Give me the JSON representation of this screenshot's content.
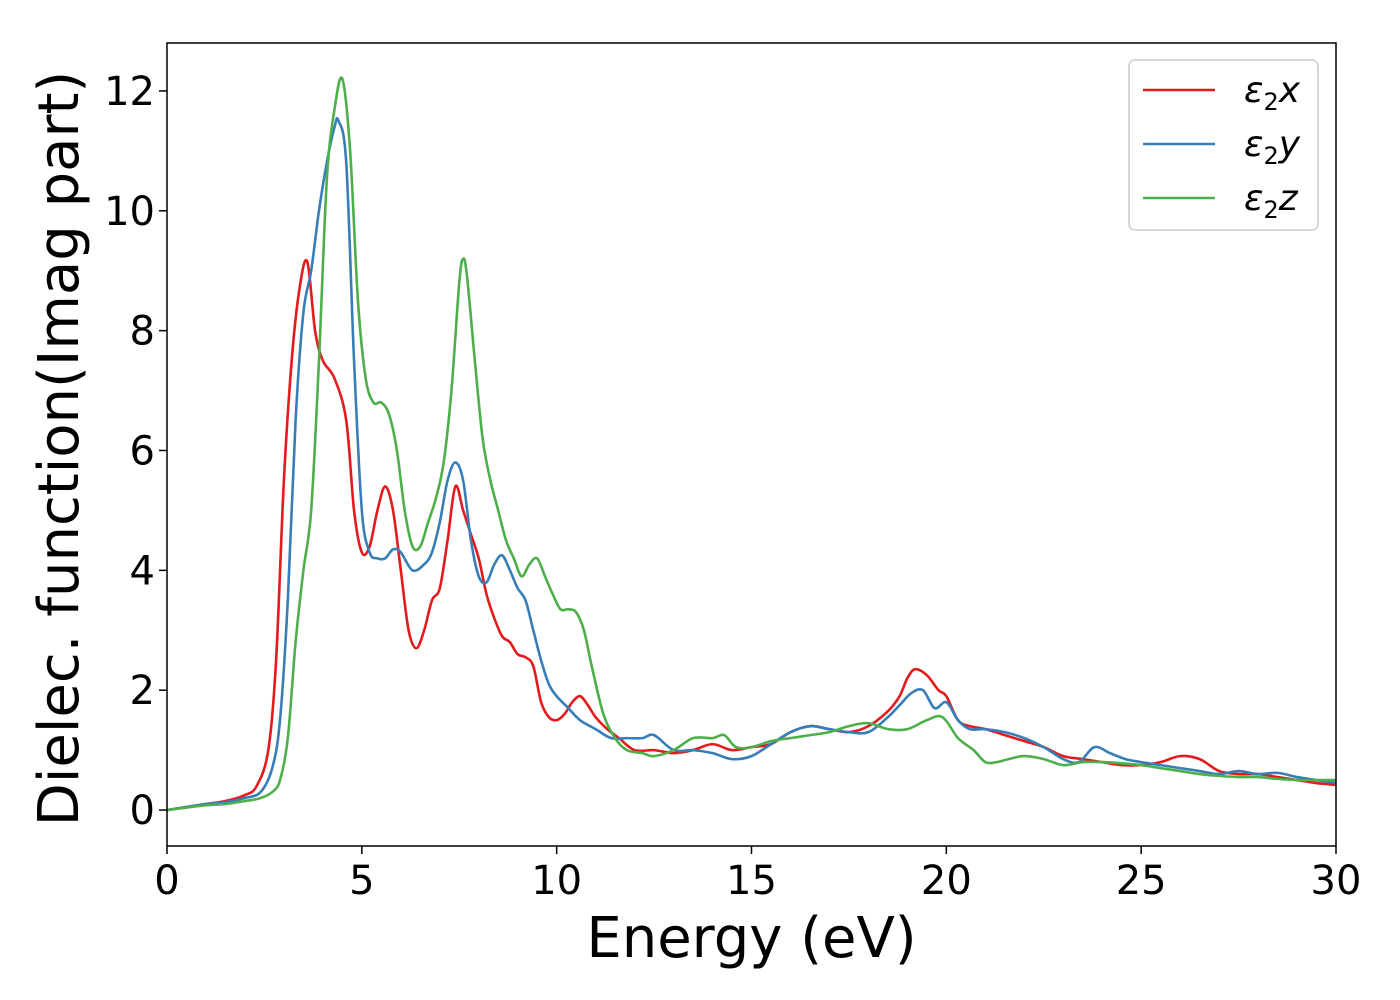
{
  "chart_data": {
    "type": "line",
    "title": "",
    "xlabel": "Energy (eV)",
    "ylabel": "Dielec. function(Imag part)",
    "xlim": [
      0,
      30
    ],
    "ylim": [
      -0.6,
      12.8
    ],
    "xticks": [
      0,
      5,
      10,
      15,
      20,
      25,
      30
    ],
    "xtick_labels": [
      "0",
      "5",
      "10",
      "15",
      "20",
      "25",
      "30"
    ],
    "yticks": [
      0,
      2,
      4,
      6,
      8,
      10,
      12
    ],
    "ytick_labels": [
      "0",
      "2",
      "4",
      "6",
      "8",
      "10",
      "12"
    ],
    "grid": false,
    "legend_position": "top-right",
    "series": [
      {
        "name": "ε2x",
        "legend": {
          "base": "ε",
          "sub": "2",
          "var": "x"
        },
        "color": "#e41a1c",
        "x": [
          0,
          1,
          1.5,
          2,
          2.3,
          2.6,
          2.8,
          3.0,
          3.2,
          3.4,
          3.6,
          3.8,
          4.0,
          4.3,
          4.6,
          4.8,
          5.0,
          5.2,
          5.4,
          5.6,
          5.8,
          6.0,
          6.2,
          6.4,
          6.6,
          6.8,
          7.0,
          7.2,
          7.4,
          7.6,
          7.8,
          8.0,
          8.2,
          8.4,
          8.6,
          8.8,
          9.0,
          9.2,
          9.4,
          9.6,
          9.8,
          10.0,
          10.2,
          10.4,
          10.6,
          10.8,
          11.0,
          11.3,
          11.6,
          12.0,
          12.5,
          13.0,
          13.5,
          14.0,
          14.5,
          15.0,
          15.5,
          16.0,
          16.5,
          17.0,
          17.5,
          18.0,
          18.5,
          18.8,
          19.0,
          19.2,
          19.5,
          19.8,
          20.0,
          20.3,
          20.6,
          21.0,
          21.5,
          22.0,
          22.5,
          23.0,
          23.5,
          24.0,
          24.5,
          25.0,
          25.5,
          26.0,
          26.5,
          27.0,
          27.5,
          28.0,
          28.5,
          29.0,
          29.5,
          30
        ],
        "y": [
          0,
          0.1,
          0.15,
          0.25,
          0.4,
          1.0,
          2.5,
          5.5,
          7.5,
          8.7,
          9.15,
          8.0,
          7.5,
          7.2,
          6.5,
          5.0,
          4.3,
          4.4,
          5.0,
          5.4,
          5.0,
          4.0,
          3.0,
          2.7,
          3.0,
          3.5,
          3.7,
          4.5,
          5.4,
          5.0,
          4.6,
          4.2,
          3.6,
          3.2,
          2.9,
          2.8,
          2.6,
          2.55,
          2.4,
          1.8,
          1.55,
          1.5,
          1.6,
          1.8,
          1.9,
          1.75,
          1.55,
          1.35,
          1.2,
          1.0,
          1.0,
          0.95,
          1.0,
          1.1,
          1.0,
          1.05,
          1.1,
          1.3,
          1.4,
          1.35,
          1.3,
          1.4,
          1.65,
          1.9,
          2.2,
          2.35,
          2.25,
          2.0,
          1.9,
          1.5,
          1.4,
          1.35,
          1.25,
          1.15,
          1.05,
          0.9,
          0.85,
          0.8,
          0.75,
          0.75,
          0.8,
          0.9,
          0.85,
          0.65,
          0.6,
          0.6,
          0.55,
          0.5,
          0.45,
          0.42
        ]
      },
      {
        "name": "ε2y",
        "legend": {
          "base": "ε",
          "sub": "2",
          "var": "y"
        },
        "color": "#377eb8",
        "x": [
          0,
          1,
          1.5,
          2,
          2.4,
          2.7,
          2.9,
          3.1,
          3.3,
          3.5,
          3.7,
          3.9,
          4.1,
          4.3,
          4.4,
          4.6,
          4.8,
          5.0,
          5.2,
          5.4,
          5.6,
          5.8,
          6.0,
          6.3,
          6.6,
          6.8,
          7.0,
          7.2,
          7.4,
          7.6,
          7.8,
          8.0,
          8.2,
          8.4,
          8.6,
          8.8,
          9.0,
          9.2,
          9.4,
          9.6,
          9.8,
          10.0,
          10.3,
          10.6,
          11.0,
          11.4,
          11.8,
          12.2,
          12.5,
          13.0,
          13.5,
          14.0,
          14.5,
          15.0,
          15.5,
          16.0,
          16.5,
          17.0,
          17.5,
          18.0,
          18.5,
          18.8,
          19.1,
          19.4,
          19.7,
          20.0,
          20.3,
          20.6,
          21.0,
          21.5,
          22.0,
          22.5,
          23.0,
          23.4,
          23.8,
          24.2,
          24.6,
          25.0,
          25.5,
          26.0,
          26.5,
          27.0,
          27.5,
          28.0,
          28.5,
          29.0,
          29.5,
          30
        ],
        "y": [
          0,
          0.1,
          0.13,
          0.2,
          0.3,
          0.7,
          1.5,
          3.5,
          6.5,
          8.3,
          9.0,
          10.0,
          10.8,
          11.4,
          11.5,
          10.8,
          7.5,
          5.0,
          4.3,
          4.2,
          4.2,
          4.35,
          4.3,
          4.0,
          4.1,
          4.3,
          4.8,
          5.5,
          5.8,
          5.5,
          4.5,
          3.9,
          3.8,
          4.1,
          4.25,
          4.0,
          3.7,
          3.5,
          3.0,
          2.5,
          2.1,
          1.9,
          1.7,
          1.5,
          1.35,
          1.2,
          1.2,
          1.2,
          1.25,
          1.0,
          1.0,
          0.95,
          0.85,
          0.9,
          1.1,
          1.3,
          1.4,
          1.35,
          1.3,
          1.3,
          1.55,
          1.75,
          1.95,
          2.0,
          1.7,
          1.8,
          1.5,
          1.35,
          1.35,
          1.3,
          1.2,
          1.05,
          0.85,
          0.8,
          1.05,
          0.95,
          0.85,
          0.8,
          0.75,
          0.7,
          0.65,
          0.6,
          0.65,
          0.6,
          0.62,
          0.55,
          0.5,
          0.45
        ]
      },
      {
        "name": "ε2z",
        "legend": {
          "base": "ε",
          "sub": "2",
          "var": "z"
        },
        "color": "#4daf4a",
        "x": [
          0,
          1,
          1.5,
          2,
          2.4,
          2.7,
          2.9,
          3.1,
          3.3,
          3.5,
          3.7,
          3.9,
          4.1,
          4.3,
          4.5,
          4.7,
          4.9,
          5.1,
          5.3,
          5.5,
          5.7,
          5.9,
          6.1,
          6.3,
          6.5,
          6.7,
          6.9,
          7.1,
          7.3,
          7.5,
          7.6,
          7.7,
          7.9,
          8.1,
          8.3,
          8.5,
          8.7,
          8.9,
          9.1,
          9.3,
          9.5,
          9.7,
          9.9,
          10.1,
          10.3,
          10.5,
          10.7,
          10.9,
          11.2,
          11.5,
          11.8,
          12.2,
          12.5,
          13.0,
          13.5,
          14.0,
          14.3,
          14.6,
          15.0,
          15.5,
          16.0,
          16.5,
          17.0,
          17.5,
          18.0,
          18.5,
          19.0,
          19.5,
          19.9,
          20.3,
          20.7,
          21.0,
          21.3,
          21.6,
          22.0,
          22.5,
          23.0,
          23.5,
          24.0,
          24.5,
          25.0,
          25.5,
          26.0,
          26.5,
          27.0,
          27.5,
          28.0,
          28.5,
          29.0,
          29.5,
          30
        ],
        "y": [
          0,
          0.08,
          0.1,
          0.15,
          0.2,
          0.3,
          0.5,
          1.2,
          2.8,
          4.0,
          5.0,
          7.5,
          10.5,
          11.7,
          12.2,
          11.0,
          8.5,
          7.2,
          6.8,
          6.8,
          6.6,
          6.0,
          5.0,
          4.4,
          4.4,
          4.8,
          5.2,
          5.8,
          7.0,
          8.8,
          9.2,
          8.9,
          7.5,
          6.2,
          5.5,
          5.0,
          4.5,
          4.2,
          3.9,
          4.1,
          4.2,
          3.9,
          3.6,
          3.35,
          3.35,
          3.3,
          3.0,
          2.4,
          1.6,
          1.2,
          1.0,
          0.95,
          0.9,
          1.0,
          1.2,
          1.2,
          1.25,
          1.05,
          1.05,
          1.15,
          1.2,
          1.25,
          1.3,
          1.4,
          1.45,
          1.35,
          1.35,
          1.5,
          1.55,
          1.2,
          1.0,
          0.8,
          0.8,
          0.85,
          0.9,
          0.85,
          0.75,
          0.8,
          0.8,
          0.78,
          0.75,
          0.7,
          0.65,
          0.6,
          0.57,
          0.55,
          0.55,
          0.52,
          0.5,
          0.5,
          0.5
        ]
      }
    ]
  }
}
